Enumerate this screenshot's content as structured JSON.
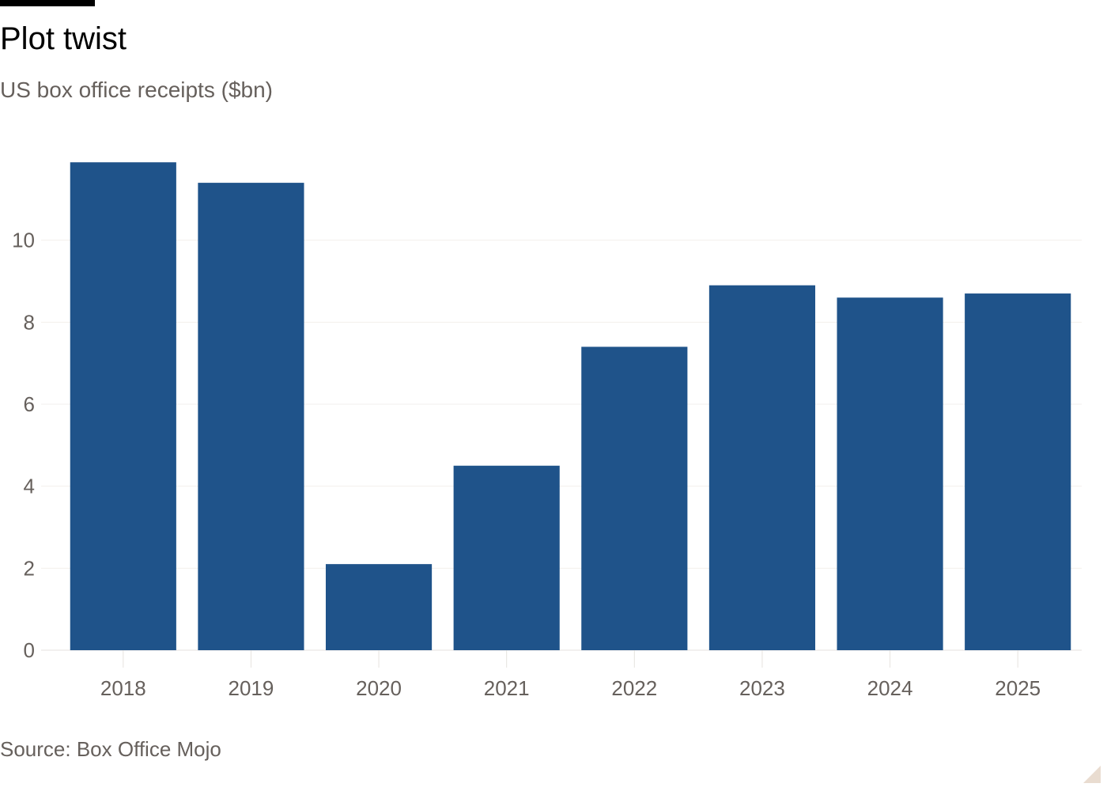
{
  "header": {
    "title": "Plot twist",
    "subtitle": "US box office receipts ($bn)"
  },
  "footer": {
    "source": "Source: Box Office Mojo"
  },
  "colors": {
    "bar": "#1f538a",
    "accent_rule": "#000000"
  },
  "chart_data": {
    "type": "bar",
    "title": "Plot twist",
    "subtitle": "US box office receipts ($bn)",
    "categories": [
      "2018",
      "2019",
      "2020",
      "2021",
      "2022",
      "2023",
      "2024",
      "2025"
    ],
    "values": [
      11.9,
      11.4,
      2.1,
      4.5,
      7.4,
      8.9,
      8.6,
      8.7
    ],
    "xlabel": "",
    "ylabel": "",
    "ylim": [
      0,
      12
    ],
    "yticks": [
      0,
      2,
      4,
      6,
      8,
      10
    ],
    "grid": true,
    "legend": "none"
  }
}
